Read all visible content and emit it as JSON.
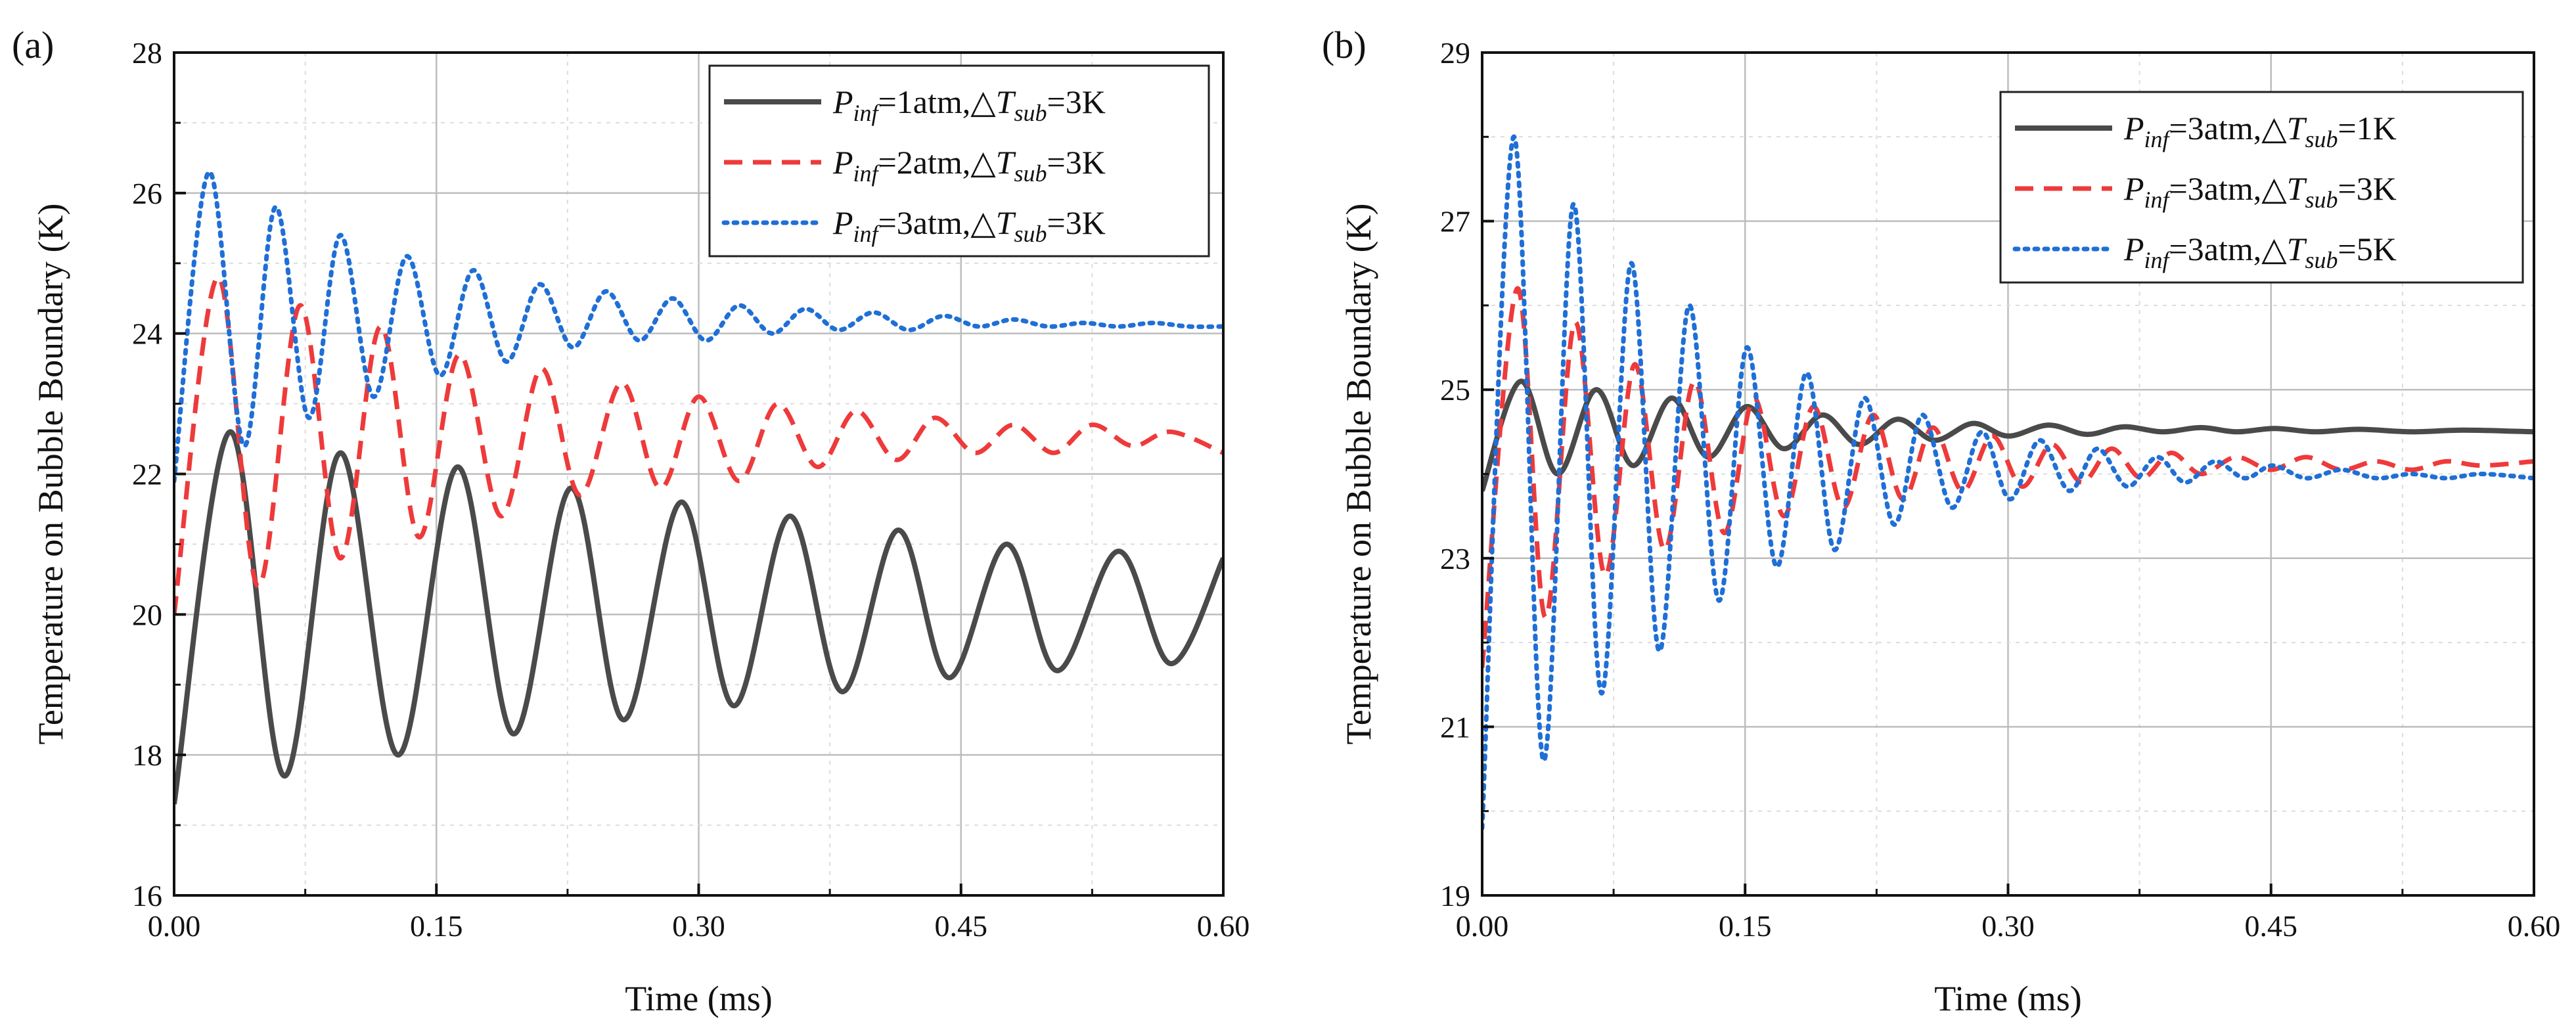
{
  "chart_data": [
    {
      "panel_label": "(a)",
      "type": "line",
      "xlabel": "Time (ms)",
      "ylabel": "Temperature on Bubble Boundary (K)",
      "xlim": [
        0,
        0.6
      ],
      "ylim": [
        16,
        28
      ],
      "xticks": [
        "0.00",
        "0.15",
        "0.30",
        "0.45",
        "0.60"
      ],
      "yticks": [
        "16",
        "18",
        "20",
        "22",
        "24",
        "26",
        "28"
      ],
      "grid": true,
      "legend_position": "top-right",
      "series": [
        {
          "name": "Pinf=1atm,△Tsub=3K",
          "legend": {
            "p": "P",
            "p_sub": "inf",
            "mid": "=1atm,△",
            "t": "T",
            "t_sub": "sub",
            "end": "=3K"
          },
          "color": "#4a4a4a",
          "dash": "solid",
          "x": [
            0.0,
            0.032,
            0.063,
            0.095,
            0.128,
            0.162,
            0.194,
            0.227,
            0.257,
            0.29,
            0.32,
            0.352,
            0.382,
            0.414,
            0.443,
            0.476,
            0.505,
            0.54,
            0.57,
            0.6
          ],
          "y": [
            17.3,
            22.6,
            17.7,
            22.3,
            18.0,
            22.1,
            18.3,
            21.8,
            18.5,
            21.6,
            18.7,
            21.4,
            18.9,
            21.2,
            19.1,
            21.0,
            19.2,
            20.9,
            19.3,
            20.8
          ]
        },
        {
          "name": "Pinf=2atm,△Tsub=3K",
          "legend": {
            "p": "P",
            "p_sub": "inf",
            "mid": "=2atm,△",
            "t": "T",
            "t_sub": "sub",
            "end": "=3K"
          },
          "color": "#ee3a3a",
          "dash": "dashed",
          "x": [
            0.0,
            0.025,
            0.048,
            0.072,
            0.095,
            0.118,
            0.14,
            0.163,
            0.187,
            0.21,
            0.232,
            0.256,
            0.278,
            0.3,
            0.323,
            0.345,
            0.368,
            0.39,
            0.413,
            0.435,
            0.458,
            0.48,
            0.503,
            0.525,
            0.548,
            0.57,
            0.6
          ],
          "y": [
            20.0,
            24.8,
            20.4,
            24.4,
            20.8,
            24.1,
            21.1,
            23.7,
            21.4,
            23.5,
            21.7,
            23.3,
            21.8,
            23.1,
            21.9,
            23.0,
            22.1,
            22.9,
            22.2,
            22.8,
            22.3,
            22.7,
            22.3,
            22.7,
            22.4,
            22.6,
            22.3
          ]
        },
        {
          "name": "Pinf=3atm,△Tsub=3K",
          "legend": {
            "p": "P",
            "p_sub": "inf",
            "mid": "=3atm,△",
            "t": "T",
            "t_sub": "sub",
            "end": "=3K"
          },
          "color": "#1f6fd6",
          "dash": "dotted",
          "x": [
            0.0,
            0.02,
            0.04,
            0.058,
            0.077,
            0.095,
            0.114,
            0.133,
            0.152,
            0.171,
            0.19,
            0.209,
            0.228,
            0.247,
            0.266,
            0.285,
            0.304,
            0.323,
            0.342,
            0.361,
            0.38,
            0.4,
            0.42,
            0.44,
            0.46,
            0.48,
            0.5,
            0.52,
            0.54,
            0.56,
            0.58,
            0.6
          ],
          "y": [
            21.9,
            26.3,
            22.4,
            25.8,
            22.8,
            25.4,
            23.1,
            25.1,
            23.4,
            24.9,
            23.6,
            24.7,
            23.8,
            24.6,
            23.9,
            24.5,
            23.9,
            24.4,
            24.0,
            24.35,
            24.05,
            24.3,
            24.05,
            24.25,
            24.1,
            24.2,
            24.1,
            24.15,
            24.1,
            24.15,
            24.1,
            24.1
          ]
        }
      ]
    },
    {
      "panel_label": "(b)",
      "type": "line",
      "xlabel": "Time (ms)",
      "ylabel": "Temperature on Bubble Boundary (K)",
      "xlim": [
        0,
        0.6
      ],
      "ylim": [
        19,
        29
      ],
      "xticks": [
        "0.00",
        "0.15",
        "0.30",
        "0.45",
        "0.60"
      ],
      "yticks": [
        "19",
        "21",
        "23",
        "25",
        "27",
        "29"
      ],
      "grid": true,
      "legend_position": "top-right",
      "series": [
        {
          "name": "Pinf=3atm,△Tsub=1K",
          "legend": {
            "p": "P",
            "p_sub": "inf",
            "mid": "=3atm,△",
            "t": "T",
            "t_sub": "sub",
            "end": "=1K"
          },
          "color": "#4a4a4a",
          "dash": "solid",
          "x": [
            0.0,
            0.022,
            0.043,
            0.065,
            0.086,
            0.108,
            0.129,
            0.151,
            0.172,
            0.194,
            0.215,
            0.237,
            0.258,
            0.28,
            0.3,
            0.323,
            0.345,
            0.366,
            0.388,
            0.41,
            0.43,
            0.452,
            0.475,
            0.5,
            0.53,
            0.56,
            0.6
          ],
          "y": [
            23.8,
            25.1,
            24.0,
            25.0,
            24.1,
            24.9,
            24.2,
            24.8,
            24.3,
            24.7,
            24.35,
            24.65,
            24.4,
            24.6,
            24.45,
            24.58,
            24.47,
            24.56,
            24.5,
            24.55,
            24.5,
            24.54,
            24.5,
            24.53,
            24.5,
            24.52,
            24.5
          ]
        },
        {
          "name": "Pinf=3atm,△Tsub=3K",
          "legend": {
            "p": "P",
            "p_sub": "inf",
            "mid": "=3atm,△",
            "t": "T",
            "t_sub": "sub",
            "end": "=3K"
          },
          "color": "#ee3a3a",
          "dash": "dashed",
          "x": [
            0.0,
            0.02,
            0.036,
            0.053,
            0.07,
            0.087,
            0.104,
            0.121,
            0.138,
            0.155,
            0.172,
            0.189,
            0.206,
            0.223,
            0.24,
            0.257,
            0.274,
            0.291,
            0.308,
            0.325,
            0.342,
            0.359,
            0.376,
            0.393,
            0.41,
            0.43,
            0.45,
            0.47,
            0.49,
            0.51,
            0.53,
            0.55,
            0.57,
            0.6
          ],
          "y": [
            21.7,
            26.2,
            22.3,
            25.8,
            22.8,
            25.3,
            23.1,
            25.1,
            23.3,
            24.9,
            23.5,
            24.8,
            23.6,
            24.7,
            23.7,
            24.55,
            23.8,
            24.45,
            23.85,
            24.35,
            23.9,
            24.3,
            23.95,
            24.25,
            24.0,
            24.2,
            24.05,
            24.2,
            24.05,
            24.15,
            24.05,
            24.15,
            24.1,
            24.15
          ]
        },
        {
          "name": "Pinf=3atm,△Tsub=5K",
          "legend": {
            "p": "P",
            "p_sub": "inf",
            "mid": "=3atm,△",
            "t": "T",
            "t_sub": "sub",
            "end": "=5K"
          },
          "color": "#1f6fd6",
          "dash": "dotted",
          "x": [
            0.0,
            0.018,
            0.035,
            0.052,
            0.068,
            0.085,
            0.101,
            0.118,
            0.135,
            0.151,
            0.168,
            0.185,
            0.201,
            0.218,
            0.235,
            0.251,
            0.268,
            0.285,
            0.301,
            0.318,
            0.335,
            0.351,
            0.368,
            0.385,
            0.401,
            0.418,
            0.435,
            0.451,
            0.47,
            0.49,
            0.51,
            0.53,
            0.55,
            0.57,
            0.6
          ],
          "y": [
            19.8,
            28.0,
            20.6,
            27.2,
            21.4,
            26.5,
            21.9,
            26.0,
            22.5,
            25.5,
            22.9,
            25.2,
            23.1,
            24.9,
            23.4,
            24.7,
            23.6,
            24.5,
            23.7,
            24.4,
            23.8,
            24.3,
            23.85,
            24.2,
            23.9,
            24.15,
            23.95,
            24.1,
            23.95,
            24.05,
            23.95,
            24.0,
            23.95,
            24.0,
            23.95
          ]
        }
      ]
    }
  ]
}
